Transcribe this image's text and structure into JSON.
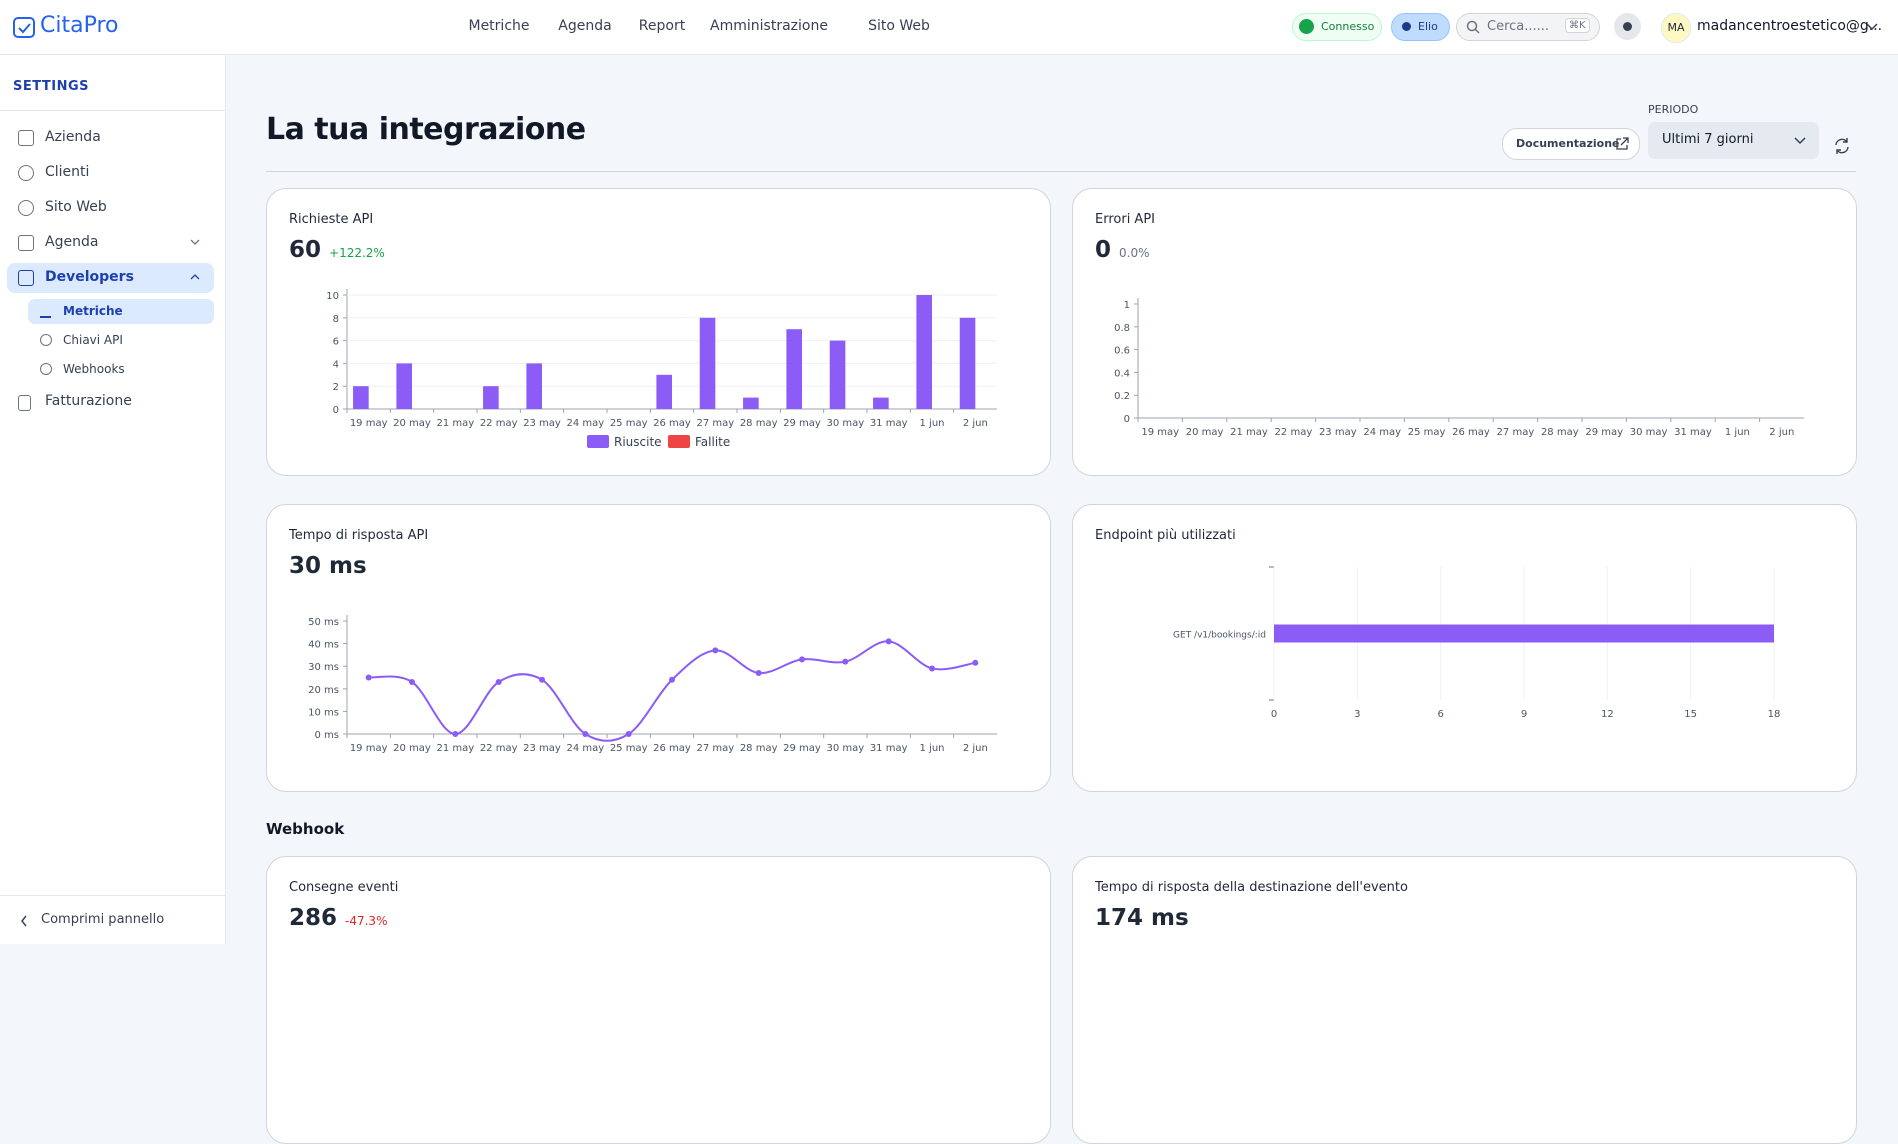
{
  "nav": {
    "logo": "CitaPro",
    "menu": [
      "Metriche",
      "Agenda",
      "Report",
      "Amministrazione",
      "Sito Web"
    ],
    "status": "Connesso",
    "user_chip": "Elio",
    "search": "Cerca......",
    "shortcut": "⌘K",
    "avatar": "MA",
    "email": "madancentroestetico@g..."
  },
  "sidebar": {
    "heading": "SETTINGS",
    "items": [
      "Azienda",
      "Clienti",
      "Sito Web",
      "Agenda",
      "Developers"
    ],
    "subitems": [
      "Metriche",
      "Chiavi API",
      "Webhooks"
    ],
    "billing": "Fatturazione",
    "collapse": "Comprimi pannello"
  },
  "header": {
    "title": "La tua integrazione",
    "docs": "Documentazione",
    "period_label": "PERIODO",
    "period": "Ultimi 7 giorni"
  },
  "cards": [
    {
      "title": "Richieste API",
      "value": 60,
      "change": "+122.2%"
    },
    {
      "title": "Errori API",
      "value": 0,
      "change": "0.0%"
    },
    {
      "title": "Tempo di risposta API",
      "value": "30 ms"
    },
    {
      "title": "Endpoint più utilizzati"
    },
    {
      "title": "Consegne eventi",
      "value": 286,
      "change": "-47.3%"
    },
    {
      "title": "Tempo di risposta della destinazione dell'evento",
      "value": "174 ms"
    }
  ],
  "section": "Webhook",
  "chart_data": [
    {
      "type": "bar",
      "categories": [
        "19 may",
        "20 may",
        "21 may",
        "22 may",
        "23 may",
        "24 may",
        "25 may",
        "26 may",
        "27 may",
        "28 may",
        "29 may",
        "30 may",
        "31 may",
        "1 jun",
        "2 jun"
      ],
      "series": [
        {
          "name": "Riuscite",
          "color": "#8b5cf6",
          "values": [
            2,
            4,
            0,
            2,
            4,
            0,
            0,
            3,
            8,
            1,
            7,
            6,
            1,
            10,
            8
          ]
        },
        {
          "name": "Fallite",
          "color": "#ef4444",
          "values": [
            0,
            0,
            0,
            0,
            0,
            0,
            0,
            0,
            0,
            0,
            0,
            0,
            0,
            0,
            0
          ]
        }
      ],
      "ylim": [
        0,
        10
      ],
      "yticks": [
        0,
        2,
        4,
        6,
        8,
        10
      ],
      "grid": true,
      "legend": "bottom"
    },
    {
      "type": "line",
      "categories": [
        "19 may",
        "20 may",
        "21 may",
        "22 may",
        "23 may",
        "24 may",
        "25 may",
        "26 may",
        "27 may",
        "28 may",
        "29 may",
        "30 may",
        "31 may",
        "1 jun",
        "2 jun"
      ],
      "series": [],
      "ylim": [
        0,
        1
      ],
      "yticks": [
        0,
        0.2,
        0.4,
        0.6,
        0.8,
        1
      ],
      "grid": false
    },
    {
      "type": "line",
      "categories": [
        "19 may",
        "20 may",
        "21 may",
        "22 may",
        "23 may",
        "24 may",
        "25 may",
        "26 may",
        "27 may",
        "28 may",
        "29 may",
        "30 may",
        "31 may",
        "1 jun",
        "2 jun"
      ],
      "series": [
        {
          "color": "#8b5cf6",
          "values": [
            25,
            23,
            0,
            23,
            24,
            0,
            0,
            24,
            37,
            27,
            33,
            32,
            41,
            29,
            31.5
          ]
        }
      ],
      "ylim": [
        0,
        50
      ],
      "yticks": [
        {
          "value": 0,
          "label": "0 ms"
        },
        {
          "value": 10,
          "label": "10 ms"
        },
        {
          "value": 20,
          "label": "20 ms"
        },
        {
          "value": 30,
          "label": "30 ms"
        },
        {
          "value": 40,
          "label": "40 ms"
        },
        {
          "value": 50,
          "label": "50 ms"
        }
      ],
      "grid": false
    },
    {
      "type": "hbar",
      "categories": [
        "GET /v1/bookings/:id"
      ],
      "values": [
        18
      ],
      "color": "#8b5cf6",
      "xlim": [
        0,
        18
      ],
      "xticks": [
        0,
        3,
        6,
        9,
        12,
        15,
        18
      ],
      "grid": true
    }
  ]
}
